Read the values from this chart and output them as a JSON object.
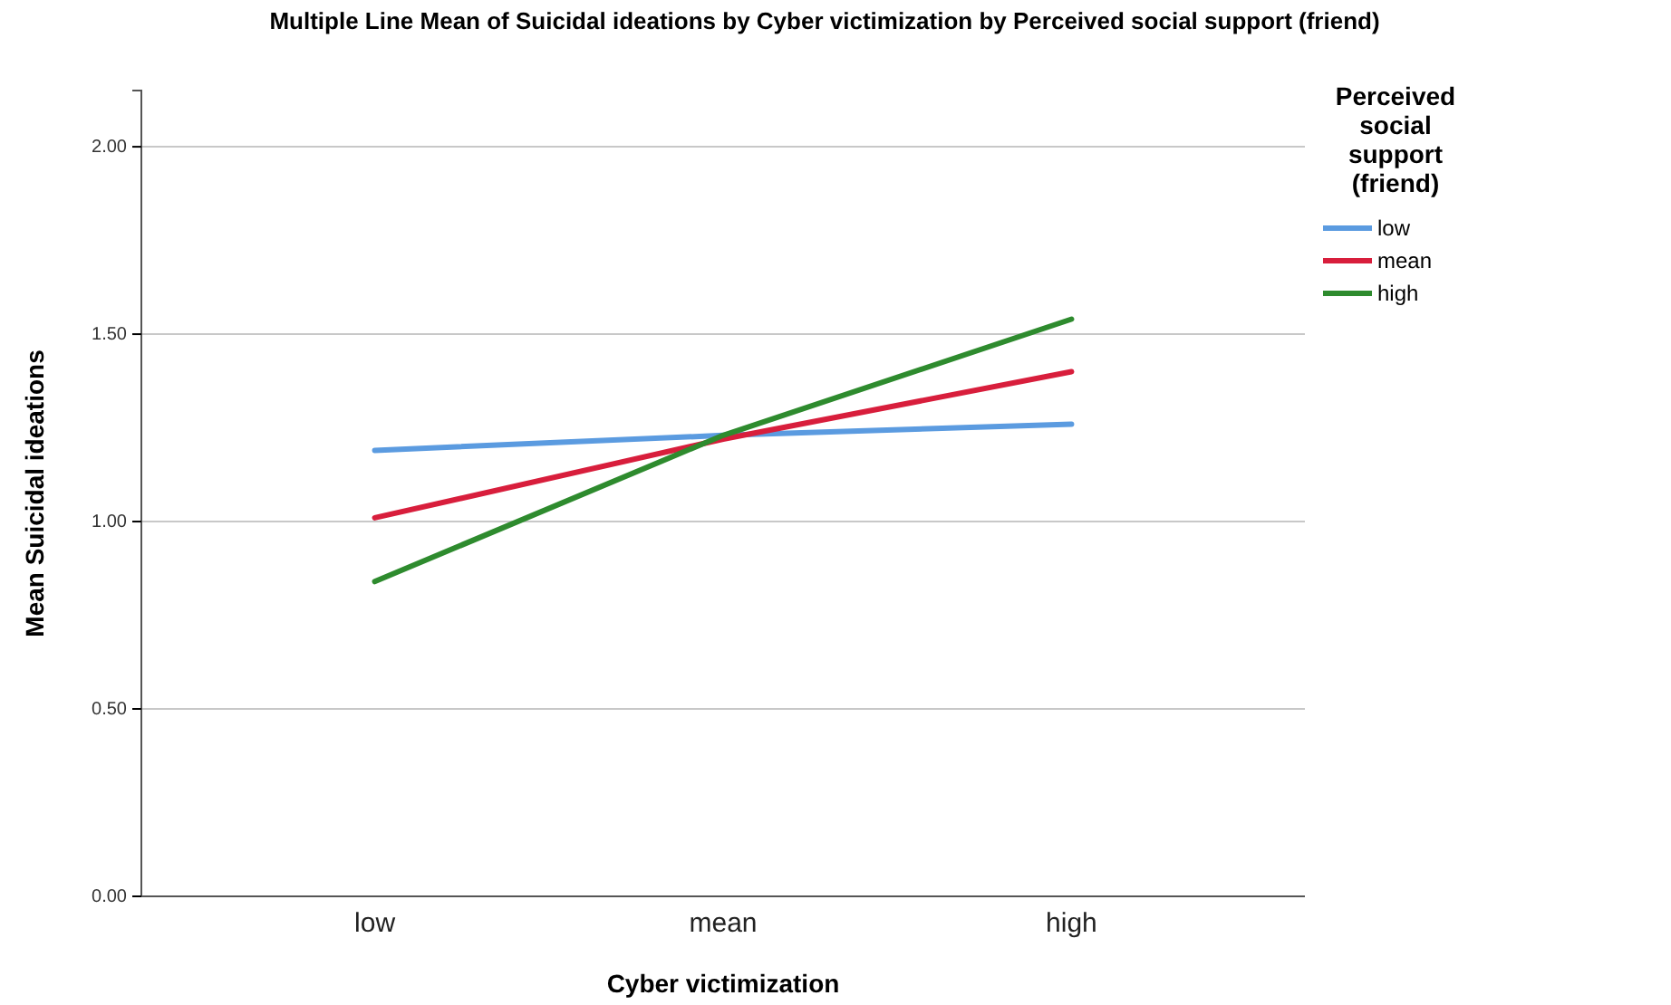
{
  "chart_data": {
    "type": "line",
    "title": "Multiple Line Mean of Suicidal ideations by Cyber victimization by Perceived social support (friend)",
    "xlabel": "Cyber victimization",
    "ylabel": "Mean Suicidal ideations",
    "legend_title": "Perceived social support (friend)",
    "categories": [
      "low",
      "mean",
      "high"
    ],
    "series": [
      {
        "name": "low",
        "color": "#5b9be0",
        "values": [
          1.19,
          1.23,
          1.26
        ]
      },
      {
        "name": "mean",
        "color": "#d81e3c",
        "values": [
          1.01,
          1.22,
          1.4
        ]
      },
      {
        "name": "high",
        "color": "#2e8b2e",
        "values": [
          0.84,
          1.23,
          1.54
        ]
      }
    ],
    "ylim": [
      0,
      2.15
    ],
    "yticks": [
      {
        "value": 0,
        "label": "0.00"
      },
      {
        "value": 0.5,
        "label": "0.50"
      },
      {
        "value": 1,
        "label": "1.00"
      },
      {
        "value": 1.5,
        "label": "1.50"
      },
      {
        "value": 2,
        "label": "2.00"
      }
    ],
    "grid": "y",
    "legend": "top right",
    "line_style": "solid"
  }
}
